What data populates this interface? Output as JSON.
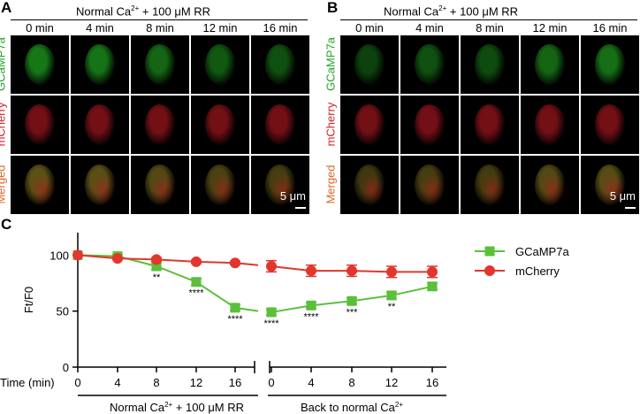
{
  "panelA": {
    "letter": "A",
    "header_prefix": "Normal Ca",
    "header_sup": "2+",
    "header_suffix": " + 100 μM RR",
    "times": [
      "0 min",
      "4 min",
      "8 min",
      "12 min",
      "16 min"
    ],
    "rows": [
      {
        "label": "GCaMP7a",
        "color": "#27a327",
        "tint": "#1fa01f"
      },
      {
        "label": "mCherry",
        "color": "#d4222a",
        "tint": "#c01a24"
      },
      {
        "label": "Merged",
        "color": "#e0662a",
        "tint": "#8a7a22"
      }
    ],
    "scale_label": "5 μm",
    "green_intensity": [
      0.9,
      0.85,
      0.7,
      0.55,
      0.45
    ]
  },
  "panelB": {
    "letter": "B",
    "header_prefix": "Normal Ca",
    "header_sup": "2+",
    "header_suffix": " + 100 μM RR",
    "times": [
      "0 min",
      "4 min",
      "8 min",
      "12 min",
      "16 min"
    ],
    "rows": [
      {
        "label": "GCaMP7a",
        "color": "#27a327",
        "tint": "#1fa01f"
      },
      {
        "label": "mCherry",
        "color": "#d4222a",
        "tint": "#c01a24"
      },
      {
        "label": "Merged",
        "color": "#e0662a",
        "tint": "#8a7a22"
      }
    ],
    "scale_label": "5 μm",
    "green_intensity": [
      0.3,
      0.45,
      0.4,
      0.7,
      0.8
    ]
  },
  "panelC": {
    "letter": "C",
    "ylabel": "Ft/F0",
    "xlabel": "Time (min)",
    "segment1_label_prefix": "Normal Ca",
    "segment1_label_sup": "2+",
    "segment1_label_suffix": " + 100 μM RR",
    "segment2_label_prefix": "Back to normal Ca",
    "segment2_label_sup": "2+"
  },
  "chart_data": {
    "type": "line",
    "x_ticks_seg1": [
      "0",
      "4",
      "8",
      "12",
      "16"
    ],
    "x_ticks_seg2": [
      "0",
      "4",
      "8",
      "12",
      "16"
    ],
    "yticks": [
      "0",
      "50",
      "100"
    ],
    "ylim": [
      0,
      120
    ],
    "series": [
      {
        "name": "GCaMP7a",
        "color": "#5bbf3a",
        "marker": "square",
        "seg1": [
          100,
          99,
          90,
          76,
          53
        ],
        "seg1_err": [
          0,
          1.5,
          3,
          3,
          2.5
        ],
        "seg2": [
          49,
          55,
          59,
          64,
          72
        ],
        "seg2_err": [
          2.5,
          2.5,
          2.5,
          3,
          3
        ],
        "gap_end": 50
      },
      {
        "name": "mCherry",
        "color": "#e2362d",
        "marker": "circle",
        "seg1": [
          100,
          97,
          96,
          94,
          93
        ],
        "seg1_err": [
          0,
          1,
          1.5,
          1.5,
          1.5
        ],
        "seg2": [
          90,
          86,
          86,
          85,
          85
        ],
        "seg2_err": [
          5,
          5,
          5,
          5,
          5
        ],
        "gap_end": 91
      }
    ],
    "significance": {
      "seg1": [
        "",
        "",
        "**",
        "****",
        "****"
      ],
      "seg2": [
        "****",
        "****",
        "***",
        "**",
        ""
      ]
    },
    "legend_position": "top-right"
  }
}
